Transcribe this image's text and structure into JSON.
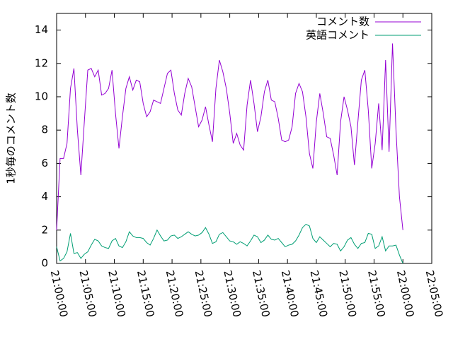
{
  "chart_data": {
    "type": "line",
    "ylabel": "1秒毎のコメント数",
    "x": [
      "21:00:00",
      "21:00:36",
      "21:01:12",
      "21:01:48",
      "21:02:24",
      "21:03:00",
      "21:03:36",
      "21:04:12",
      "21:04:48",
      "21:05:24",
      "21:06:00",
      "21:06:36",
      "21:07:12",
      "21:07:48",
      "21:08:24",
      "21:09:00",
      "21:09:36",
      "21:10:12",
      "21:10:48",
      "21:11:24",
      "21:12:00",
      "21:12:36",
      "21:13:12",
      "21:13:48",
      "21:14:24",
      "21:15:00",
      "21:15:36",
      "21:16:12",
      "21:16:48",
      "21:17:24",
      "21:18:00",
      "21:18:36",
      "21:19:12",
      "21:19:48",
      "21:20:24",
      "21:21:00",
      "21:21:36",
      "21:22:12",
      "21:22:48",
      "21:23:24",
      "21:24:00",
      "21:24:36",
      "21:25:12",
      "21:25:48",
      "21:26:24",
      "21:27:00",
      "21:27:36",
      "21:28:12",
      "21:28:48",
      "21:29:24",
      "21:30:00",
      "21:30:36",
      "21:31:12",
      "21:31:48",
      "21:32:24",
      "21:33:00",
      "21:33:36",
      "21:34:12",
      "21:34:48",
      "21:35:24",
      "21:36:00",
      "21:36:36",
      "21:37:12",
      "21:37:48",
      "21:38:24",
      "21:39:00",
      "21:39:36",
      "21:40:12",
      "21:40:48",
      "21:41:24",
      "21:42:00",
      "21:42:36",
      "21:43:12",
      "21:43:48",
      "21:44:24",
      "21:45:00",
      "21:45:36",
      "21:46:12",
      "21:46:48",
      "21:47:24",
      "21:48:00",
      "21:48:36",
      "21:49:12",
      "21:49:48",
      "21:50:24",
      "21:51:00",
      "21:51:36",
      "21:52:12",
      "21:52:48",
      "21:53:24",
      "21:54:00",
      "21:54:36",
      "21:55:12",
      "21:55:48",
      "21:56:24",
      "21:57:00",
      "21:57:36",
      "21:58:12",
      "21:58:48",
      "21:59:24",
      "22:00:00"
    ],
    "series": [
      {
        "name": "コメント数",
        "color": "#9400d3",
        "values": [
          2,
          6.3,
          6.3,
          7.2,
          10.5,
          11.7,
          8,
          5.3,
          8.5,
          11.6,
          11.7,
          11.2,
          11.6,
          10.1,
          10.2,
          10.5,
          11.6,
          9,
          6.9,
          8.8,
          10.5,
          11.2,
          10.4,
          11,
          10.9,
          9.6,
          8.8,
          9.1,
          9.8,
          9.7,
          9.6,
          10.5,
          11.4,
          11.6,
          10.2,
          9.2,
          8.9,
          10.2,
          11.1,
          10.6,
          9.4,
          8.2,
          8.6,
          9.4,
          8.3,
          7.3,
          10.5,
          12.2,
          11.5,
          10.5,
          9,
          7.2,
          7.8,
          7.1,
          6.8,
          9.5,
          11,
          9.6,
          7.9,
          8.8,
          10.3,
          11,
          9.8,
          9.7,
          8.7,
          7.4,
          7.3,
          7.4,
          8.2,
          10.2,
          10.8,
          10.3,
          8.8,
          6.6,
          5.7,
          8.5,
          10.2,
          9,
          7.6,
          7.5,
          6.5,
          5.3,
          8.5,
          10,
          9.2,
          8.2,
          5.9,
          8.5,
          11,
          11.6,
          9.2,
          5.7,
          7.2,
          9.6,
          6.8,
          12.2,
          6.7,
          13.2,
          8,
          4,
          2
        ]
      },
      {
        "name": "英語コメント",
        "color": "#009e73",
        "values": [
          1,
          0.15,
          0.3,
          0.7,
          1.8,
          0.6,
          0.65,
          0.3,
          0.55,
          0.7,
          1.1,
          1.45,
          1.35,
          1.05,
          0.95,
          0.9,
          1.35,
          1.5,
          1.05,
          0.95,
          1.3,
          1.9,
          1.65,
          1.55,
          1.55,
          1.5,
          1.25,
          1.1,
          1.5,
          2.0,
          1.65,
          1.35,
          1.4,
          1.65,
          1.7,
          1.5,
          1.6,
          1.75,
          1.9,
          1.75,
          1.65,
          1.7,
          1.85,
          2.15,
          1.75,
          1.2,
          1.3,
          1.75,
          1.85,
          1.6,
          1.35,
          1.3,
          1.15,
          1.3,
          1.2,
          1.05,
          1.35,
          1.7,
          1.6,
          1.25,
          1.4,
          1.7,
          1.45,
          1.4,
          1.5,
          1.25,
          1.0,
          1.1,
          1.15,
          1.35,
          1.7,
          2.15,
          2.35,
          2.25,
          1.5,
          1.25,
          1.6,
          1.4,
          1.2,
          1.0,
          1.2,
          1.15,
          0.75,
          1.0,
          1.4,
          1.55,
          1.15,
          0.9,
          1.2,
          1.25,
          1.8,
          1.75,
          0.9,
          1.05,
          1.6,
          0.75,
          1.05,
          1.05,
          1.1,
          0.5,
          0
        ]
      }
    ],
    "xlim": [
      "21:00:00",
      "22:05:00"
    ],
    "xticks": [
      "21:00:00",
      "21:05:00",
      "21:10:00",
      "21:15:00",
      "21:20:00",
      "21:25:00",
      "21:30:00",
      "21:35:00",
      "21:40:00",
      "21:45:00",
      "21:50:00",
      "21:55:00",
      "22:00:00",
      "22:05:00"
    ],
    "ylim": [
      0,
      15
    ],
    "yticks": [
      0,
      2,
      4,
      6,
      8,
      10,
      12,
      14
    ],
    "legend": "top-right"
  }
}
